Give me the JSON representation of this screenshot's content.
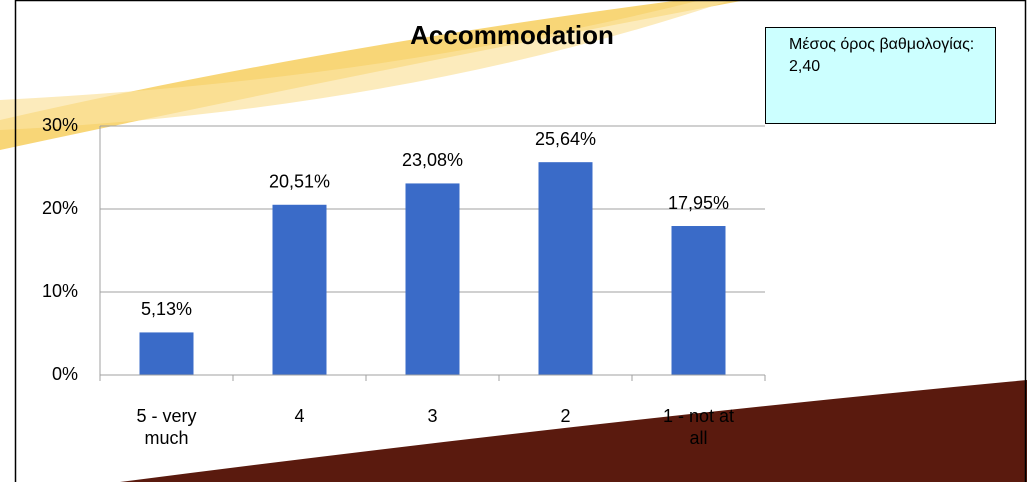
{
  "chart_data": {
    "type": "bar",
    "title": "Accommodation",
    "categories": [
      "5 - very much",
      "4",
      "3",
      "2",
      "1 - not at all"
    ],
    "values": [
      5.13,
      20.51,
      23.08,
      25.64,
      17.95
    ],
    "value_labels": [
      "5,13%",
      "20,51%",
      "23,08%",
      "25,64%",
      "17,95%"
    ],
    "color": "#3a6bc8",
    "ylim": [
      0,
      30
    ],
    "yticks": [
      {
        "value": 0,
        "label": "0%"
      },
      {
        "value": 10,
        "label": "10%"
      },
      {
        "value": 20,
        "label": "20%"
      },
      {
        "value": 30,
        "label": "30%"
      }
    ],
    "grid": true,
    "annotation": "Μέσος όρος βαθμολογίας: 2,40"
  }
}
